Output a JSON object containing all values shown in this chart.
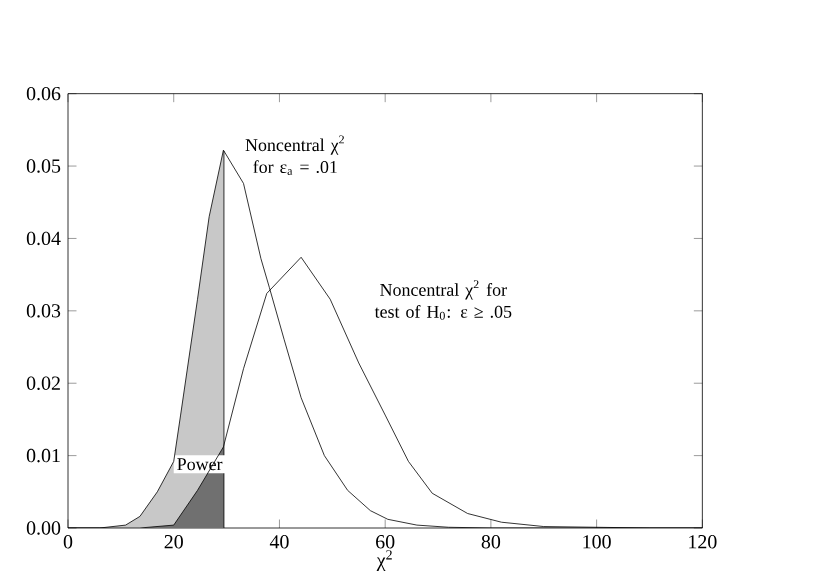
{
  "chart_data": {
    "type": "line",
    "xlabel": "χ$^{2}$",
    "xlim": [
      0,
      120
    ],
    "xticks": [
      0,
      20,
      40,
      60,
      80,
      100,
      120
    ],
    "ylim": [
      0,
      0.06
    ],
    "yticks": [
      {
        "value": 0,
        "label": "0.00"
      },
      {
        "value": 0.01,
        "label": "0.01"
      },
      {
        "value": 0.02,
        "label": "0.02"
      },
      {
        "value": 0.03,
        "label": "0.03"
      },
      {
        "value": 0.04,
        "label": "0.04"
      },
      {
        "value": 0.05,
        "label": "0.05"
      },
      {
        "value": 0.06,
        "label": "0.06"
      }
    ],
    "grid": false,
    "marker": "none",
    "line_style": "solid",
    "series": [
      {
        "name": "Noncentral χ$^{2}$ for ε$_{a}$ = .01",
        "color": "#000000",
        "x": [
          0,
          6,
          10.9,
          13.6,
          16.9,
          20,
          21.3,
          24.5,
          26.7,
          29.4,
          33.2,
          36.5,
          38.1,
          40.9,
          44.1,
          48.5,
          52.9,
          57.2,
          60.5,
          66,
          72,
          80,
          120
        ],
        "values": [
          0,
          0,
          0.0004,
          0.0016,
          0.005,
          0.0092,
          0.0156,
          0.0316,
          0.043,
          0.0522,
          0.0476,
          0.0372,
          0.0332,
          0.026,
          0.018,
          0.01,
          0.0052,
          0.0024,
          0.0012,
          0.0004,
          0.0001,
          0,
          0
        ]
      },
      {
        "name": "Noncentral χ$^{2}$ for test of H$_{0}$: ε ≥ .05",
        "color": "#000000",
        "x": [
          0,
          13.6,
          20,
          24.5,
          29.4,
          33.2,
          37.6,
          44.1,
          49.6,
          55,
          60,
          64.4,
          68.9,
          75.6,
          82,
          90,
          110,
          120
        ],
        "values": [
          0,
          0,
          0.0004,
          0.0052,
          0.0112,
          0.022,
          0.0324,
          0.0374,
          0.0316,
          0.0228,
          0.0156,
          0.0092,
          0.0048,
          0.002,
          0.0008,
          0.0002,
          0,
          0
        ]
      },
      {
        "type": "area",
        "color": "#c8c8c8",
        "x": [
          0,
          6,
          10.9,
          13.6,
          16.9,
          20,
          21.3,
          24.5,
          26.7,
          29.4,
          29.5
        ],
        "values": [
          0,
          0,
          0.0004,
          0.0016,
          0.005,
          0.0092,
          0.0156,
          0.0316,
          0.043,
          0.0522,
          0.0522
        ]
      },
      {
        "type": "area",
        "color": "#707070",
        "x": [
          0,
          13.6,
          20,
          24.5,
          29.4,
          29.5
        ],
        "values": [
          0,
          0,
          0.0004,
          0.0052,
          0.0112,
          0.0112
        ]
      }
    ],
    "ref_lines": [
      {
        "axis": "x",
        "value": 29.5,
        "label": "Power"
      }
    ]
  }
}
